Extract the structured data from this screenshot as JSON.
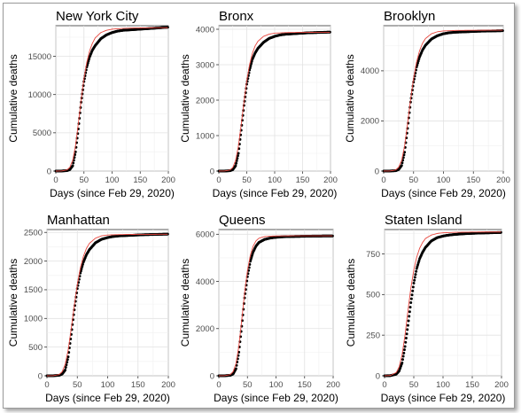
{
  "chart_data": [
    {
      "type": "scatter",
      "title": "New York City",
      "xlabel": "Days (since Feb 29, 2020)",
      "ylabel": "Cumulative deaths",
      "xlim": [
        0,
        200
      ],
      "ylim": [
        0,
        19000
      ],
      "xticks": [
        0,
        50,
        100,
        150,
        200
      ],
      "yticks": [
        0,
        5000,
        10000,
        15000
      ],
      "series": [
        {
          "kind": "points",
          "color": "#000000",
          "x": [
            0,
            10,
            20,
            25,
            30,
            35,
            40,
            45,
            50,
            55,
            60,
            65,
            70,
            80,
            90,
            100,
            110,
            120,
            140,
            160,
            180,
            199
          ],
          "y": [
            0,
            5,
            60,
            200,
            700,
            2500,
            5500,
            9000,
            11700,
            13600,
            14900,
            15800,
            16400,
            17300,
            17800,
            18100,
            18300,
            18400,
            18500,
            18600,
            18700,
            18800
          ]
        },
        {
          "kind": "line",
          "color": "#e8473f",
          "x": [
            0,
            10,
            20,
            25,
            30,
            35,
            40,
            45,
            50,
            55,
            60,
            65,
            70,
            80,
            90,
            100,
            120,
            140,
            160,
            180,
            199
          ],
          "y": [
            0,
            8,
            150,
            500,
            1400,
            3300,
            6200,
            9300,
            12100,
            14200,
            15700,
            16700,
            17400,
            18100,
            18400,
            18550,
            18650,
            18700,
            18720,
            18730,
            18740
          ]
        }
      ]
    },
    {
      "type": "scatter",
      "title": "Bronx",
      "xlabel": "Days (since Feb 29, 2020)",
      "ylabel": "Cumulative deaths",
      "xlim": [
        0,
        200
      ],
      "ylim": [
        0,
        4100
      ],
      "xticks": [
        0,
        50,
        100,
        150,
        200
      ],
      "yticks": [
        0,
        1000,
        2000,
        3000,
        4000
      ],
      "series": [
        {
          "kind": "points",
          "color": "#000000",
          "x": [
            0,
            10,
            20,
            25,
            30,
            35,
            40,
            45,
            50,
            55,
            60,
            65,
            70,
            80,
            90,
            100,
            110,
            120,
            140,
            160,
            180,
            199
          ],
          "y": [
            0,
            1,
            10,
            40,
            150,
            500,
            1150,
            1850,
            2450,
            2850,
            3150,
            3330,
            3460,
            3630,
            3740,
            3800,
            3840,
            3860,
            3880,
            3900,
            3910,
            3920
          ]
        },
        {
          "kind": "line",
          "color": "#e8473f",
          "x": [
            0,
            10,
            20,
            25,
            30,
            35,
            40,
            45,
            50,
            55,
            60,
            65,
            70,
            80,
            90,
            100,
            120,
            140,
            160,
            180,
            199
          ],
          "y": [
            0,
            2,
            30,
            100,
            300,
            700,
            1300,
            1950,
            2550,
            3000,
            3320,
            3530,
            3660,
            3800,
            3860,
            3890,
            3905,
            3910,
            3912,
            3914,
            3915
          ]
        }
      ]
    },
    {
      "type": "scatter",
      "title": "Brooklyn",
      "xlabel": "Days (since Feb 29, 2020)",
      "ylabel": "Cumulative deaths",
      "xlim": [
        0,
        200
      ],
      "ylim": [
        0,
        5800
      ],
      "xticks": [
        0,
        50,
        100,
        150,
        200
      ],
      "yticks": [
        0,
        2000,
        4000
      ],
      "series": [
        {
          "kind": "points",
          "color": "#000000",
          "x": [
            0,
            10,
            20,
            25,
            30,
            35,
            40,
            45,
            50,
            55,
            60,
            65,
            70,
            80,
            90,
            100,
            110,
            120,
            140,
            160,
            180,
            199
          ],
          "y": [
            0,
            1,
            15,
            60,
            220,
            750,
            1700,
            2750,
            3550,
            4150,
            4550,
            4830,
            5020,
            5270,
            5400,
            5480,
            5520,
            5540,
            5560,
            5580,
            5590,
            5600
          ]
        },
        {
          "kind": "line",
          "color": "#e8473f",
          "x": [
            0,
            10,
            20,
            25,
            30,
            35,
            40,
            45,
            50,
            55,
            60,
            65,
            70,
            80,
            90,
            100,
            120,
            140,
            160,
            180,
            199
          ],
          "y": [
            0,
            3,
            40,
            150,
            420,
            1000,
            1900,
            2850,
            3700,
            4350,
            4800,
            5100,
            5290,
            5480,
            5560,
            5590,
            5610,
            5615,
            5618,
            5620,
            5620
          ]
        }
      ]
    },
    {
      "type": "scatter",
      "title": "Manhattan",
      "xlabel": "Days (since Feb 29, 2020)",
      "ylabel": "Cumulative deaths",
      "xlim": [
        0,
        200
      ],
      "ylim": [
        0,
        2550
      ],
      "xticks": [
        0,
        50,
        100,
        150,
        200
      ],
      "yticks": [
        0,
        500,
        1000,
        1500,
        2000,
        2500
      ],
      "series": [
        {
          "kind": "points",
          "color": "#000000",
          "x": [
            0,
            10,
            20,
            25,
            30,
            35,
            40,
            45,
            50,
            55,
            60,
            65,
            70,
            80,
            90,
            100,
            110,
            120,
            140,
            160,
            180,
            199
          ],
          "y": [
            0,
            1,
            8,
            30,
            100,
            330,
            720,
            1150,
            1520,
            1790,
            1980,
            2110,
            2200,
            2320,
            2380,
            2410,
            2430,
            2440,
            2450,
            2460,
            2465,
            2470
          ]
        },
        {
          "kind": "line",
          "color": "#e8473f",
          "x": [
            0,
            10,
            20,
            25,
            30,
            35,
            40,
            45,
            50,
            55,
            60,
            65,
            70,
            80,
            90,
            100,
            120,
            140,
            160,
            180,
            199
          ],
          "y": [
            0,
            1,
            20,
            70,
            200,
            450,
            820,
            1220,
            1590,
            1880,
            2080,
            2220,
            2310,
            2400,
            2440,
            2455,
            2462,
            2465,
            2466,
            2467,
            2468
          ]
        }
      ]
    },
    {
      "type": "scatter",
      "title": "Queens",
      "xlabel": "Days (since Feb 29, 2020)",
      "ylabel": "Cumulative deaths",
      "xlim": [
        0,
        200
      ],
      "ylim": [
        0,
        6200
      ],
      "xticks": [
        0,
        50,
        100,
        150,
        200
      ],
      "yticks": [
        0,
        2000,
        4000,
        6000
      ],
      "series": [
        {
          "kind": "points",
          "color": "#000000",
          "x": [
            0,
            10,
            20,
            25,
            30,
            35,
            40,
            45,
            50,
            55,
            60,
            65,
            70,
            80,
            90,
            100,
            110,
            120,
            140,
            160,
            180,
            199
          ],
          "y": [
            0,
            2,
            20,
            80,
            300,
            1000,
            2100,
            3300,
            4200,
            4850,
            5250,
            5500,
            5650,
            5780,
            5840,
            5870,
            5890,
            5900,
            5910,
            5920,
            5925,
            5930
          ]
        },
        {
          "kind": "line",
          "color": "#e8473f",
          "x": [
            0,
            10,
            20,
            25,
            30,
            35,
            40,
            45,
            50,
            55,
            60,
            65,
            70,
            80,
            90,
            100,
            120,
            140,
            160,
            180,
            199
          ],
          "y": [
            0,
            3,
            50,
            180,
            520,
            1250,
            2350,
            3500,
            4450,
            5100,
            5500,
            5720,
            5830,
            5900,
            5920,
            5928,
            5932,
            5934,
            5935,
            5935,
            5935
          ]
        }
      ]
    },
    {
      "type": "scatter",
      "title": "Staten Island",
      "xlabel": "Days (since Feb 29, 2020)",
      "ylabel": "Cumulative deaths",
      "xlim": [
        0,
        200
      ],
      "ylim": [
        0,
        900
      ],
      "xticks": [
        0,
        50,
        100,
        150,
        200
      ],
      "yticks": [
        0,
        250,
        500,
        750
      ],
      "series": [
        {
          "kind": "points",
          "color": "#000000",
          "x": [
            0,
            10,
            20,
            25,
            30,
            35,
            40,
            45,
            50,
            55,
            60,
            65,
            70,
            80,
            90,
            100,
            110,
            120,
            140,
            160,
            180,
            199
          ],
          "y": [
            0,
            1,
            10,
            30,
            80,
            180,
            310,
            450,
            570,
            660,
            720,
            760,
            790,
            830,
            850,
            860,
            866,
            870,
            875,
            878,
            880,
            882
          ]
        },
        {
          "kind": "line",
          "color": "#e8473f",
          "x": [
            0,
            10,
            20,
            25,
            30,
            35,
            40,
            45,
            50,
            55,
            60,
            65,
            70,
            80,
            90,
            100,
            120,
            140,
            160,
            180,
            199
          ],
          "y": [
            0,
            2,
            20,
            55,
            130,
            250,
            400,
            540,
            650,
            730,
            785,
            820,
            845,
            866,
            876,
            880,
            883,
            884,
            885,
            885,
            885
          ]
        }
      ]
    }
  ]
}
